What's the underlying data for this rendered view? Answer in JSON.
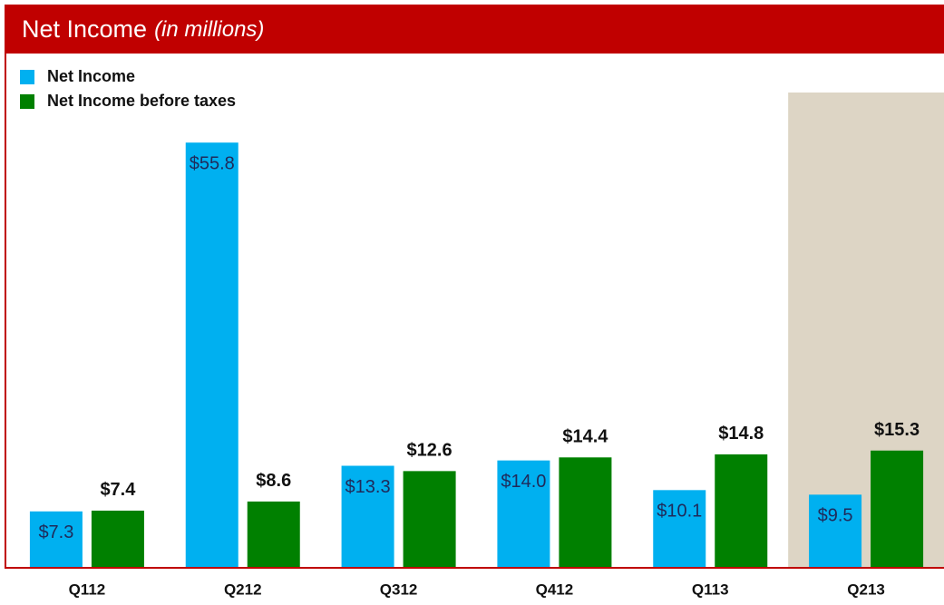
{
  "chart_data": {
    "type": "bar",
    "title": "Net Income",
    "subtitle": "(in millions)",
    "categories": [
      "Q112",
      "Q212",
      "Q312",
      "Q412",
      "Q113",
      "Q213"
    ],
    "series": [
      {
        "name": "Net Income",
        "color": "#00b0f0",
        "values": [
          7.3,
          55.8,
          13.3,
          14.0,
          10.1,
          9.5
        ],
        "value_labels": [
          "$7.3",
          "$55.8",
          "$13.3",
          "$14.0",
          "$10.1",
          "$9.5"
        ]
      },
      {
        "name": "Net Income before taxes",
        "color": "#008000",
        "values": [
          7.4,
          8.6,
          12.6,
          14.4,
          14.8,
          15.3
        ],
        "value_labels": [
          "$7.4",
          "$8.6",
          "$12.6",
          "$14.4",
          "$14.8",
          "$15.3"
        ]
      }
    ],
    "ylim": [
      0,
      60
    ],
    "highlight_index": 5,
    "highlight_color": "#ddd5c5",
    "legend": "top-left"
  }
}
